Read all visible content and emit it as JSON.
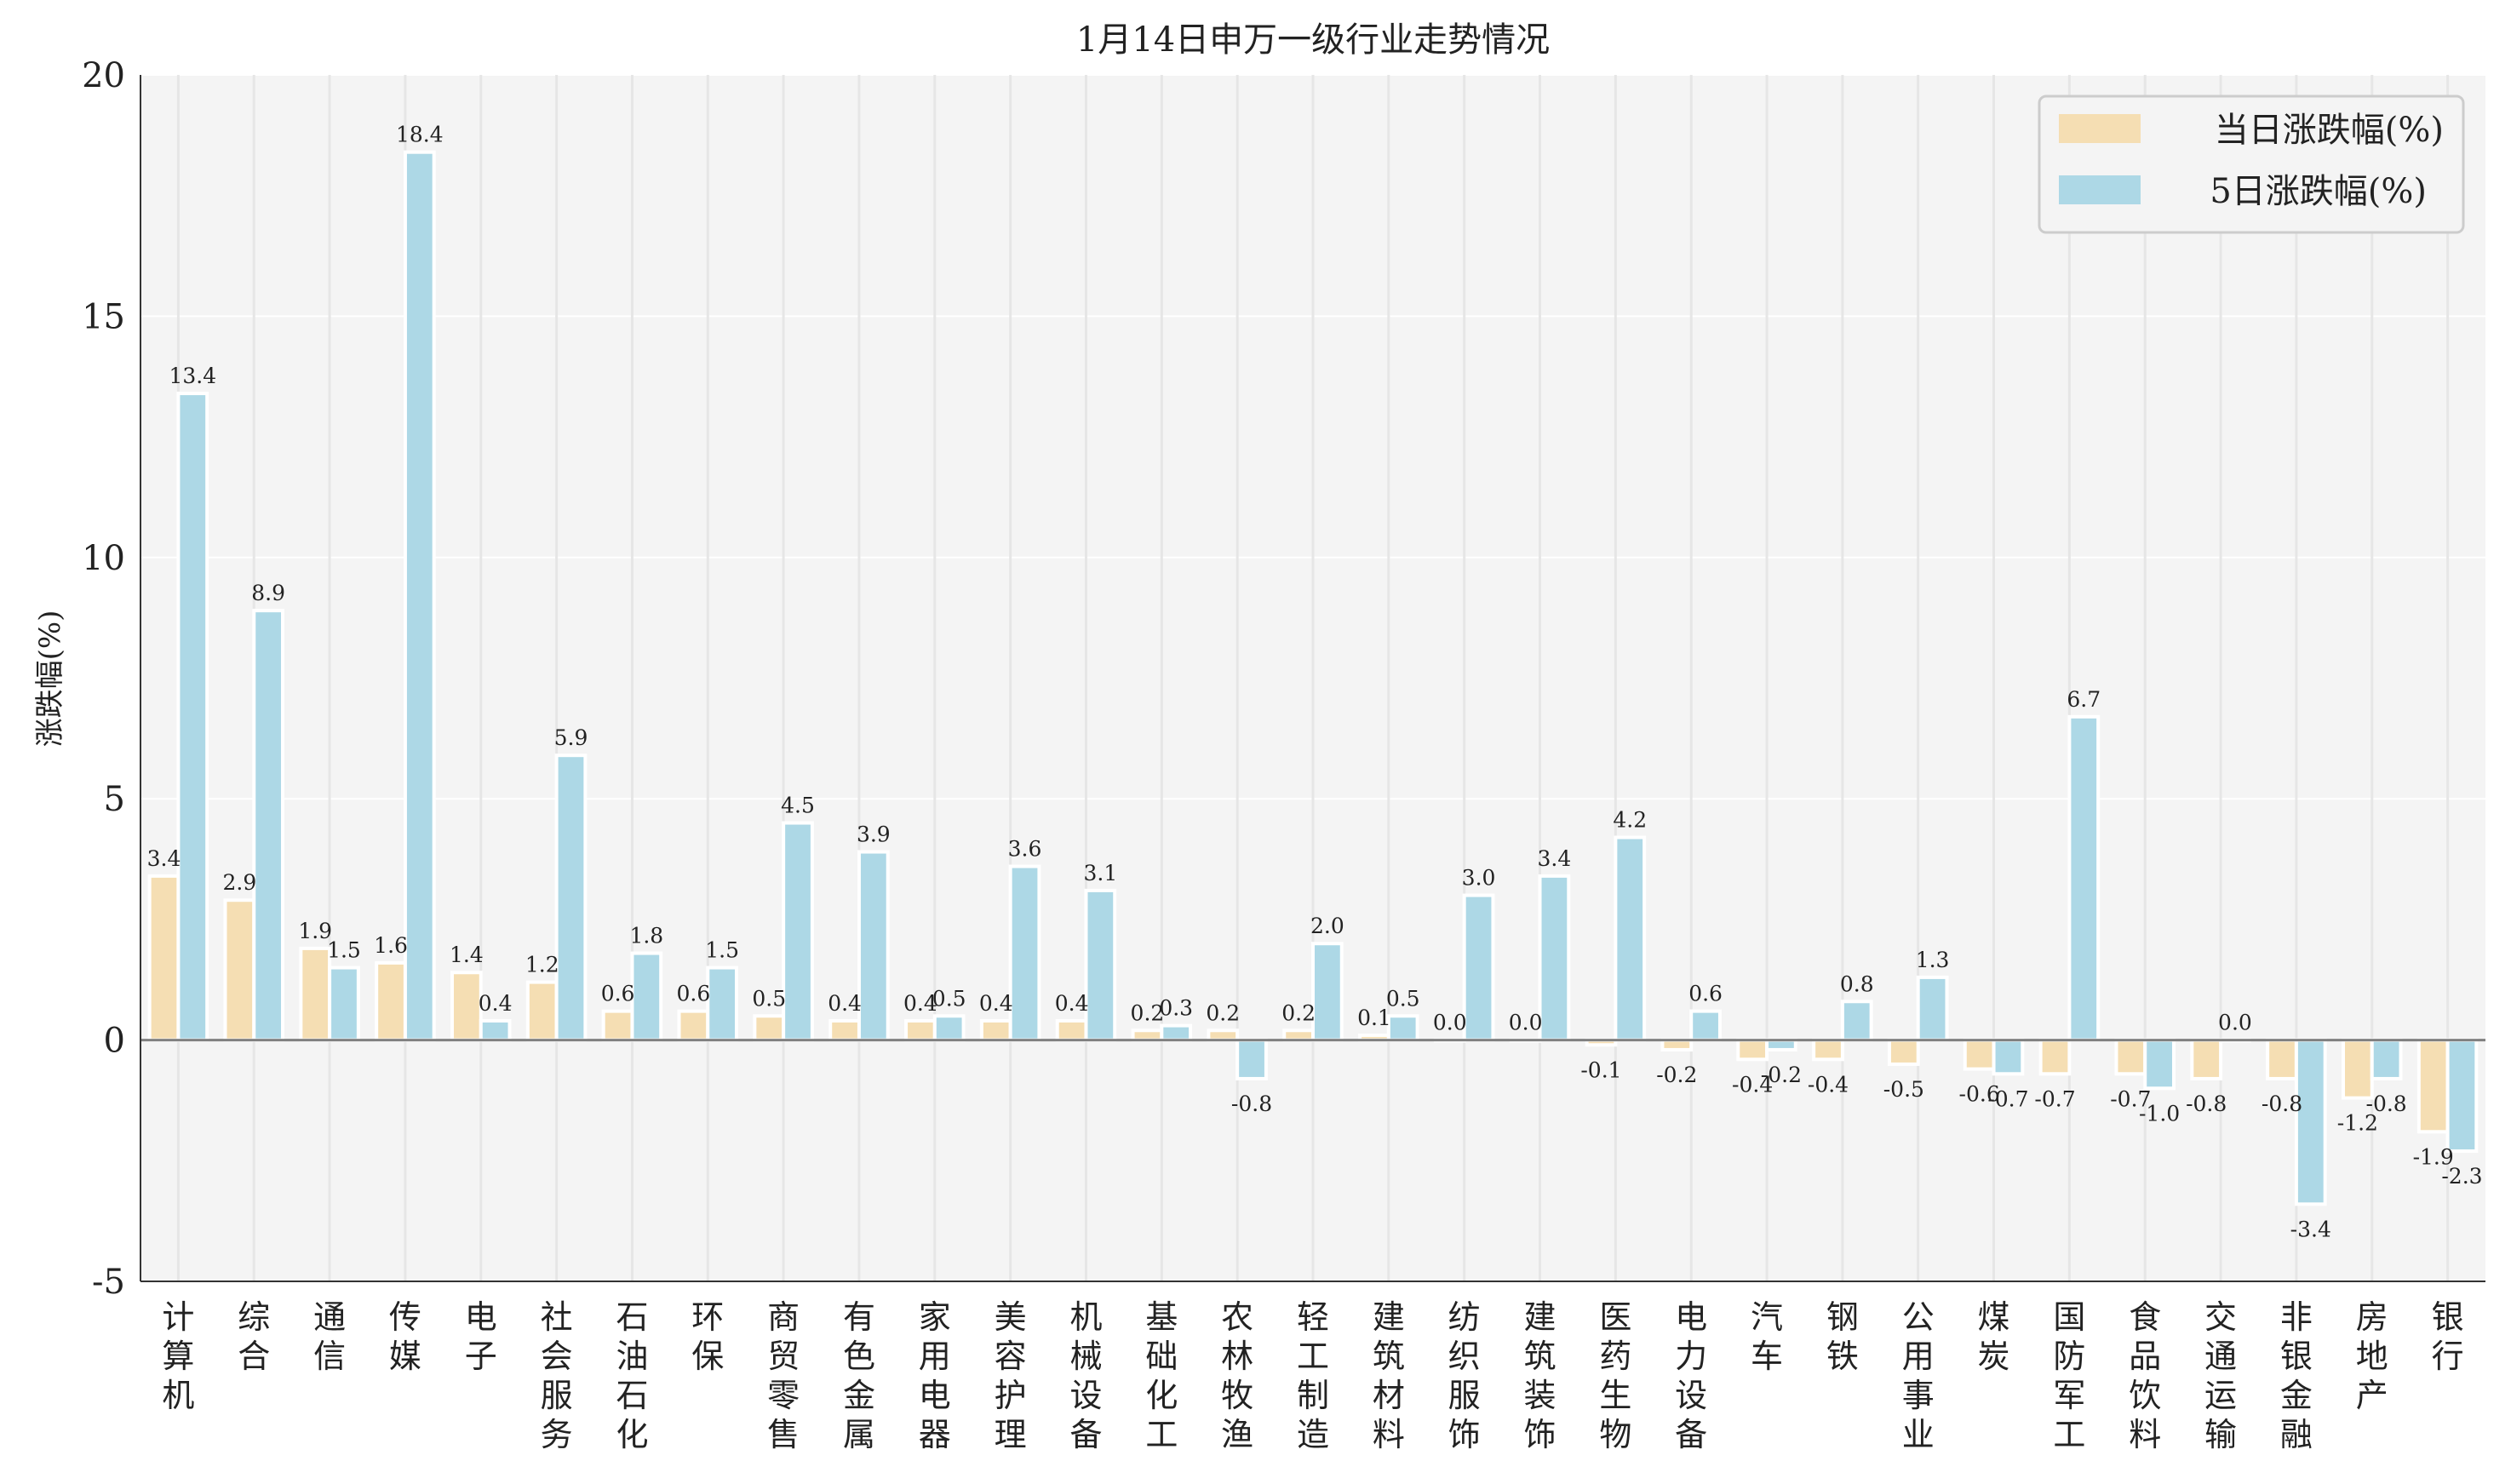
{
  "chart_data": {
    "type": "bar",
    "title": "1月14日申万一级行业走势情况",
    "xlabel": "",
    "ylabel": "涨跌幅(%)",
    "ylim": [
      -5,
      20
    ],
    "yticks": [
      -5,
      0,
      5,
      10,
      15,
      20
    ],
    "grid": true,
    "legend_position": "top-right",
    "categories": [
      "计算机",
      "综合",
      "通信",
      "传媒",
      "电子",
      "社会服务",
      "石油石化",
      "环保",
      "商贸零售",
      "有色金属",
      "家用电器",
      "美容护理",
      "机械设备",
      "基础化工",
      "农林牧渔",
      "轻工制造",
      "建筑材料",
      "纺织服饰",
      "建筑装饰",
      "医药生物",
      "电力设备",
      "汽车",
      "钢铁",
      "公用事业",
      "煤炭",
      "国防军工",
      "食品饮料",
      "交通运输",
      "非银金融",
      "房地产",
      "银行"
    ],
    "series": [
      {
        "name": "当日涨跌幅(%)",
        "color": "#f5deb3",
        "values": [
          3.4,
          2.9,
          1.9,
          1.6,
          1.4,
          1.2,
          0.6,
          0.6,
          0.5,
          0.4,
          0.4,
          0.4,
          0.4,
          0.2,
          0.2,
          0.2,
          0.1,
          0.0,
          0.0,
          -0.1,
          -0.2,
          -0.4,
          -0.4,
          -0.5,
          -0.6,
          -0.7,
          -0.7,
          -0.8,
          -0.8,
          -1.2,
          -1.9
        ]
      },
      {
        "name": "5日涨跌幅(%)",
        "color": "#add8e6",
        "values": [
          13.4,
          8.9,
          1.5,
          18.4,
          0.4,
          5.9,
          1.8,
          1.5,
          4.5,
          3.9,
          0.5,
          3.6,
          3.1,
          0.3,
          -0.8,
          2.0,
          0.5,
          3.0,
          3.4,
          4.2,
          0.6,
          -0.2,
          0.8,
          1.3,
          -0.7,
          6.7,
          -1.0,
          0.0,
          -3.4,
          -0.8,
          -2.3
        ]
      }
    ]
  }
}
